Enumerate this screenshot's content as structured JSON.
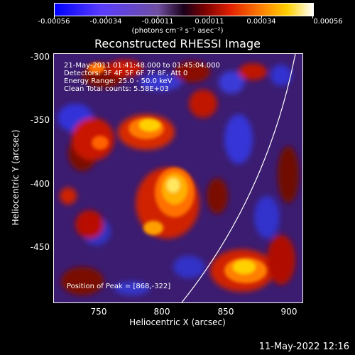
{
  "colorbar": {
    "tick_labels": [
      "-0.00056",
      "-0.00034",
      "-0.00011",
      "0.00011",
      "0.00034",
      "0.00056"
    ],
    "units": "(photons cm⁻² s⁻¹ asec⁻²)"
  },
  "title": "Reconstructed RHESSI Image",
  "info": {
    "line1": "21-May-2011 01:41:48.000 to 01:45:04.000",
    "line2": "Detectors: 3F 4F 5F 6F 7F 8F, Att 0",
    "line3": "Energy Range: 25.0 - 50.0 keV",
    "line4": "Clean    Total counts: 5.58E+03",
    "peak": "Position of Peak = [868,-322]"
  },
  "axes": {
    "xlabel": "Heliocentric X (arcsec)",
    "ylabel": "Heliocentric Y (arcsec)",
    "xticks": [
      "750",
      "800",
      "850",
      "900"
    ],
    "yticks": [
      "-300",
      "-350",
      "-400",
      "-450"
    ]
  },
  "footer": "11-May-2022 12:16"
}
